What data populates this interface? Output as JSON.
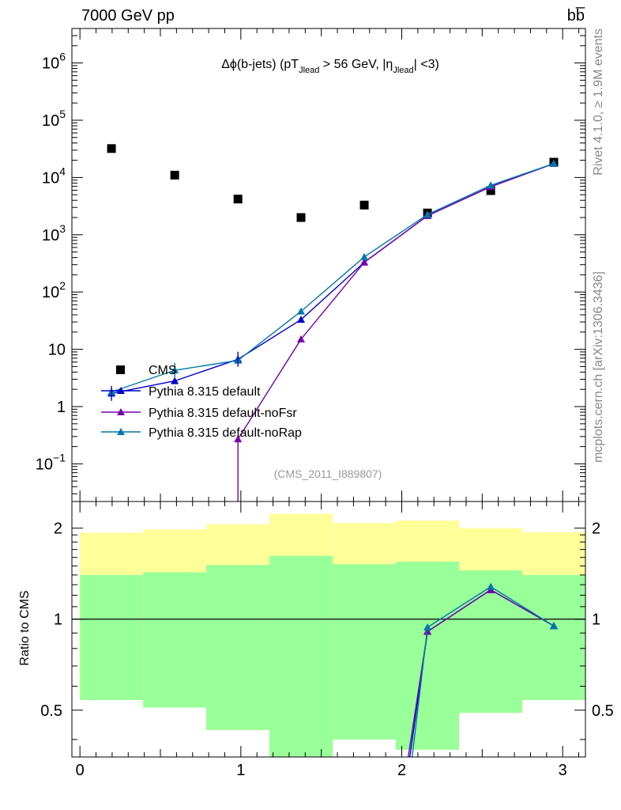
{
  "header": {
    "energy_label": "7000 GeV pp",
    "process_label": "bb̅"
  },
  "side_text": {
    "rivet": "Rivet 4.1.0, ≥ 1.9M events",
    "mcplots": "mcplots.cern.ch [arXiv:1306.3436]"
  },
  "colors": {
    "data": "#000000",
    "default": "#0000cc",
    "noFsr": "#7700aa",
    "noRap": "#0077aa",
    "band_outer": "#ffff99",
    "band_inner": "#99ff99"
  },
  "chart_data": [
    {
      "type": "scatter",
      "panel": "main",
      "title_parts": {
        "a": "Δϕ(b-jets) (pT",
        "sub1": "Jlead",
        "b": " >  56 GeV, |η",
        "sub2": "Jlead",
        "c": "| <3)"
      },
      "analysis_tag": "(CMS_2011_I889807)",
      "yscale": "log",
      "xlim": [
        -0.05,
        3.1416
      ],
      "ylim": [
        0.022,
        4000000
      ],
      "y_ticks": [
        {
          "value": 1000000,
          "base": "10",
          "exp": "6"
        },
        {
          "value": 100000,
          "base": "10",
          "exp": "5"
        },
        {
          "value": 10000,
          "base": "10",
          "exp": "4"
        },
        {
          "value": 1000,
          "base": "10",
          "exp": "3"
        },
        {
          "value": 100,
          "base": "10",
          "exp": "2"
        },
        {
          "value": 10,
          "base": "10",
          "exp": ""
        },
        {
          "value": 1,
          "base": "1",
          "exp": ""
        },
        {
          "value": 0.1,
          "base": "10",
          "exp": "−1"
        }
      ],
      "x": [
        0.196,
        0.589,
        0.982,
        1.374,
        1.767,
        2.16,
        2.553,
        2.945
      ],
      "series": [
        {
          "name": "CMS",
          "key": "data",
          "marker": "square",
          "values": [
            32000,
            11000,
            4200,
            2000,
            3300,
            2400,
            5900,
            18500
          ]
        },
        {
          "name": "Pythia 8.315 default",
          "key": "default",
          "marker": "triangle",
          "values": [
            1.7,
            2.8,
            6.7,
            33,
            330,
            2150,
            6900,
            17500
          ]
        },
        {
          "name": "Pythia 8.315 default-noFsr",
          "key": "noFsr",
          "marker": "triangle",
          "values": [
            null,
            null,
            0.27,
            15,
            330,
            2150,
            6900,
            17500
          ]
        },
        {
          "name": "Pythia 8.315 default-noRap",
          "key": "noRap",
          "marker": "triangle",
          "values": [
            1.8,
            4.3,
            6.4,
            46,
            410,
            2250,
            7300,
            17500
          ]
        }
      ],
      "legend": [
        "CMS",
        "Pythia 8.315 default",
        "Pythia 8.315 default-noFsr",
        "Pythia 8.315 default-noRap"
      ]
    },
    {
      "type": "line",
      "panel": "ratio",
      "ylabel": "Ratio to CMS",
      "yscale": "log",
      "ylim": [
        0.35,
        2.45
      ],
      "xlim": [
        -0.05,
        3.1416
      ],
      "y_tick_labels": [
        {
          "value": 0.5,
          "label": "0.5"
        },
        {
          "value": 1,
          "label": "1"
        },
        {
          "value": 2,
          "label": "2"
        }
      ],
      "x_tick_labels": [
        {
          "value": 0,
          "label": "0"
        },
        {
          "value": 1,
          "label": "1"
        },
        {
          "value": 2,
          "label": "2"
        },
        {
          "value": 3,
          "label": "3"
        }
      ],
      "bin_edges": [
        0,
        0.393,
        0.785,
        1.178,
        1.571,
        1.963,
        2.356,
        2.749,
        3.1416
      ],
      "band_outer": {
        "lo": [
          0.54,
          0.51,
          0.43,
          0.35,
          0.4,
          0.37,
          0.49,
          0.54
        ],
        "hi": [
          1.93,
          1.98,
          2.06,
          2.23,
          2.08,
          2.12,
          2.0,
          1.94
        ]
      },
      "band_inner": {
        "lo": [
          0.54,
          0.51,
          0.43,
          0.35,
          0.4,
          0.37,
          0.49,
          0.54
        ],
        "hi": [
          1.4,
          1.43,
          1.51,
          1.62,
          1.52,
          1.55,
          1.45,
          1.4
        ]
      },
      "x": [
        0.196,
        0.589,
        0.982,
        1.374,
        1.767,
        2.16,
        2.553,
        2.945
      ],
      "series": [
        {
          "name": "Pythia 8.315 default",
          "key": "default",
          "values": [
            null,
            null,
            null,
            null,
            null,
            0.91,
            1.25,
            0.95
          ]
        },
        {
          "name": "Pythia 8.315 default-noFsr",
          "key": "noFsr",
          "values": [
            null,
            null,
            null,
            null,
            null,
            0.91,
            1.25,
            0.95
          ]
        },
        {
          "name": "Pythia 8.315 default-noRap",
          "key": "noRap",
          "values": [
            null,
            null,
            null,
            null,
            null,
            0.94,
            1.28,
            0.95
          ]
        }
      ]
    }
  ]
}
